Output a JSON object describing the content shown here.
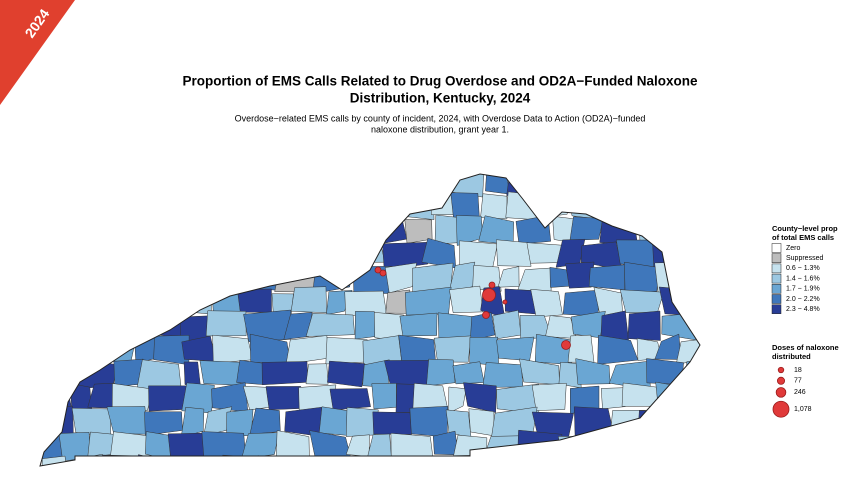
{
  "banner": "2024",
  "title": [
    "Proportion of EMS Calls Related to Drug Overdose and OD2A−Funded Naloxone",
    "Distribution, Kentucky, 2024"
  ],
  "subtitle": [
    "Overdose−related EMS calls by county of incident, 2024, with Overdose Data to Action (OD2A)−funded",
    "naloxone distribution, grant year 1."
  ],
  "fill_legend": {
    "title": [
      "County−level prop",
      "of total EMS calls"
    ],
    "items": [
      {
        "label": "Zero",
        "color": "#ffffff"
      },
      {
        "label": "Suppressed",
        "color": "#bdbdbd"
      },
      {
        "label": "0.6 − 1.3%",
        "color": "#c6e2ee"
      },
      {
        "label": "1.4 − 1.6%",
        "color": "#9cc8e2"
      },
      {
        "label": "1.7 − 1.9%",
        "color": "#6aa6d3"
      },
      {
        "label": "2.0 − 2.2%",
        "color": "#3f77bb"
      },
      {
        "label": "2.3 − 4.8%",
        "color": "#283d96"
      }
    ]
  },
  "size_legend": {
    "title": [
      "Doses of naloxone",
      "distributed"
    ],
    "color": "#e03a3a",
    "values": [
      18,
      77,
      246,
      {
        "value": 1078,
        "label": "1,078"
      }
    ]
  }
}
